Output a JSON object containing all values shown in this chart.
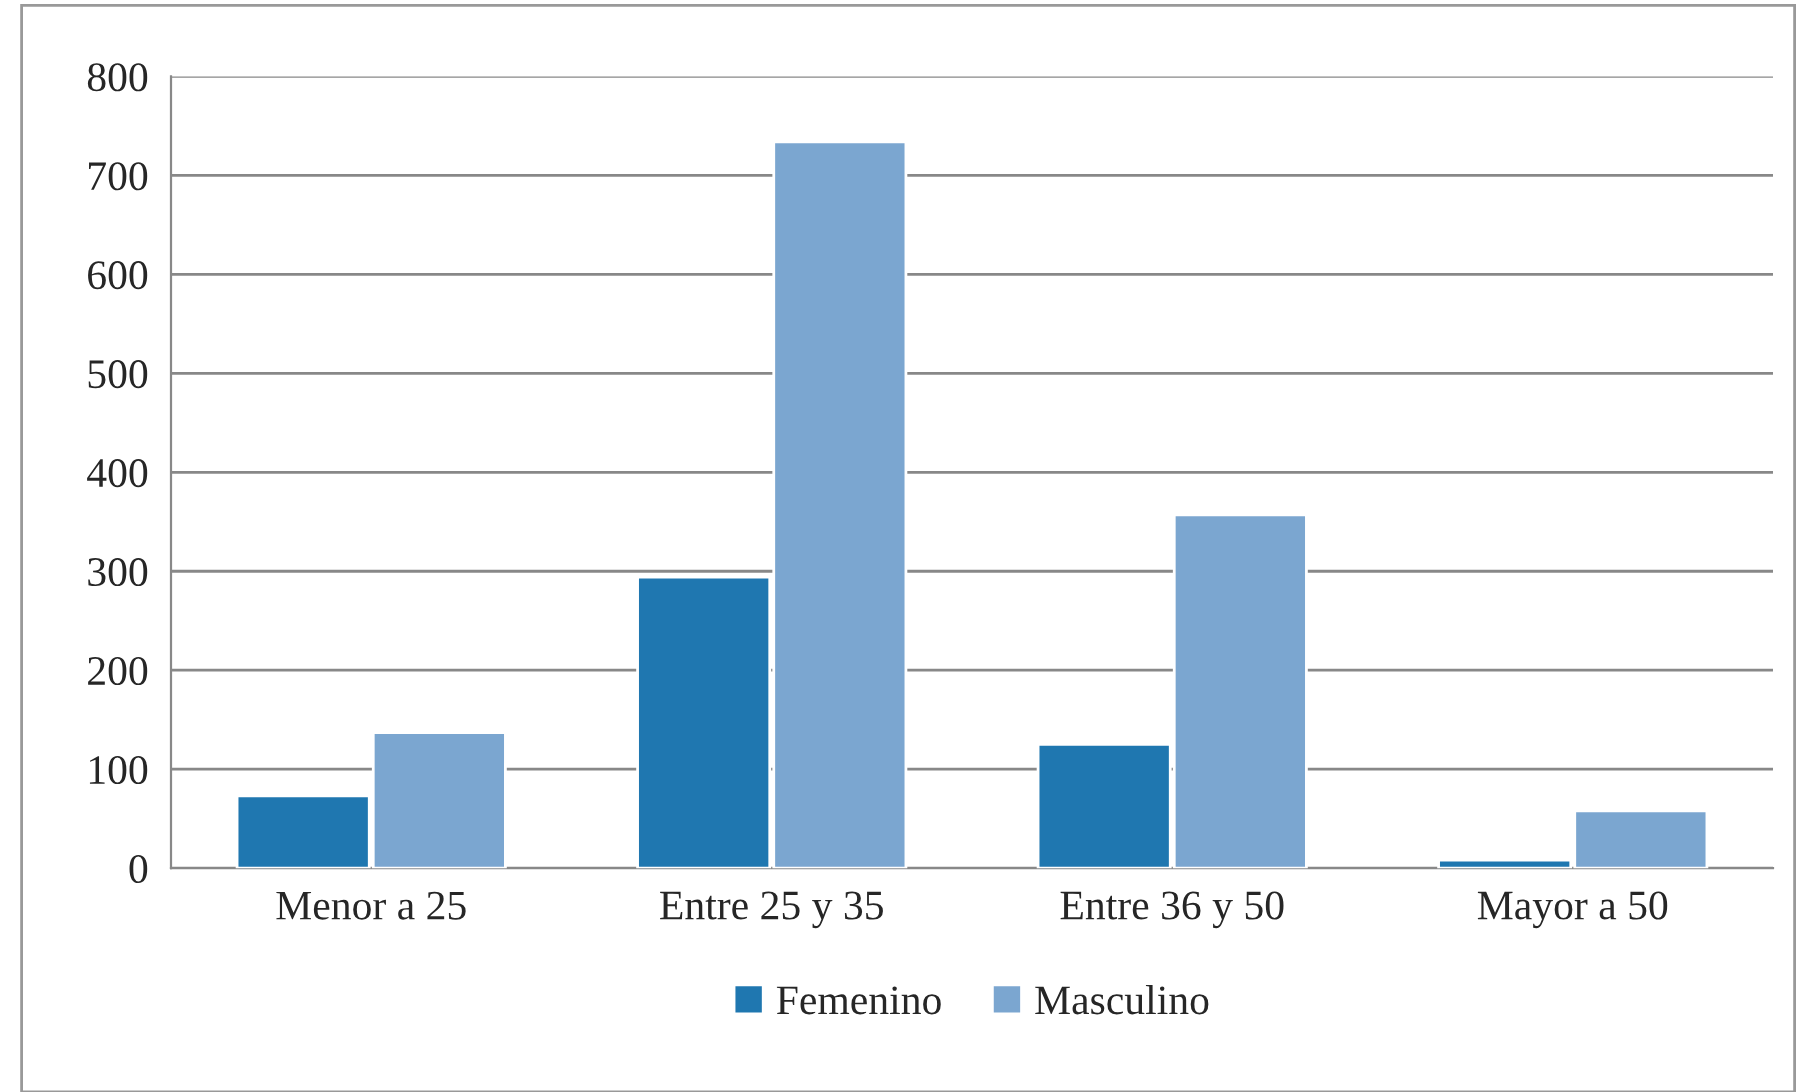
{
  "chart_data": {
    "type": "bar",
    "categories": [
      "Menor a 25",
      "Entre 25 y 35",
      "Entre 36 y 50",
      "Mayor a 50"
    ],
    "series": [
      {
        "name": "Femenino",
        "color": "#1f77b0",
        "values": [
          73,
          294,
          125,
          8
        ]
      },
      {
        "name": "Masculino",
        "color": "#7ba6d0",
        "values": [
          137,
          734,
          357,
          58
        ]
      }
    ],
    "ylim": [
      0,
      800
    ],
    "yticks": [
      0,
      100,
      200,
      300,
      400,
      500,
      600,
      700,
      800
    ],
    "grid": "y",
    "legend": "bottom"
  }
}
